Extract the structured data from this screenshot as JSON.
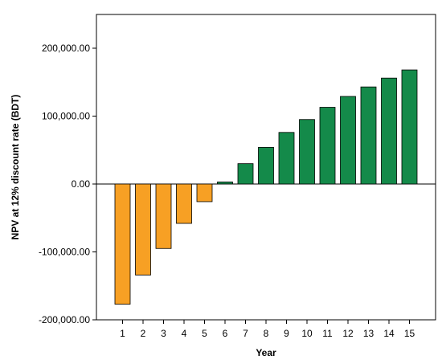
{
  "chart_data": {
    "type": "bar",
    "title": "",
    "xlabel": "Year",
    "ylabel": "NPV at 12% discount rate (BDT)",
    "categories": [
      "1",
      "2",
      "3",
      "4",
      "5",
      "6",
      "7",
      "8",
      "9",
      "10",
      "11",
      "12",
      "13",
      "14",
      "15"
    ],
    "values": [
      -177000,
      -134000,
      -95000,
      -58000,
      -26000,
      3000,
      30000,
      54000,
      76000,
      95000,
      113000,
      129000,
      143000,
      156000,
      168000
    ],
    "ylim": [
      -200000,
      200000
    ],
    "yticks": [
      -200000,
      -100000,
      0,
      100000,
      200000
    ],
    "ytick_labels": [
      "-200,000.00",
      "-100,000.00",
      "0.00",
      "100,000.00",
      "200,000.00"
    ],
    "grid": false,
    "legend": "none",
    "colors": {
      "negative": "#F7A024",
      "positive": "#148A4A",
      "stroke": "#000000"
    }
  }
}
